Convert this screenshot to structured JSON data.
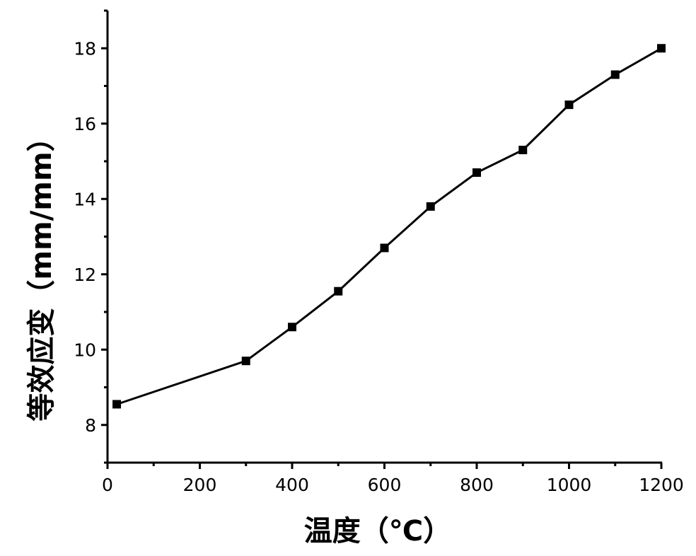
{
  "chart_data": {
    "type": "line",
    "xlabel": "温度（℃）",
    "ylabel": "等效应变（mm/mm）",
    "xlim": [
      0,
      1200
    ],
    "ylim": [
      7,
      19
    ],
    "xticks": [
      0,
      200,
      400,
      600,
      800,
      1000,
      1200
    ],
    "xtick_labels": [
      "0",
      "200",
      "400",
      "600",
      "800",
      "1000",
      "1200"
    ],
    "yticks": [
      8,
      10,
      12,
      14,
      16,
      18
    ],
    "ytick_labels": [
      "8",
      "10",
      "12",
      "14",
      "16",
      "18"
    ],
    "grid": false,
    "legend": "none",
    "marker": "square",
    "line_color": "#000000",
    "series": [
      {
        "x": [
          20,
          300,
          400,
          500,
          600,
          700,
          800,
          900,
          1000,
          1100,
          1200
        ],
        "y": [
          8.55,
          9.7,
          10.6,
          11.55,
          12.7,
          13.8,
          14.7,
          15.3,
          16.5,
          17.3,
          18.0
        ]
      }
    ]
  }
}
